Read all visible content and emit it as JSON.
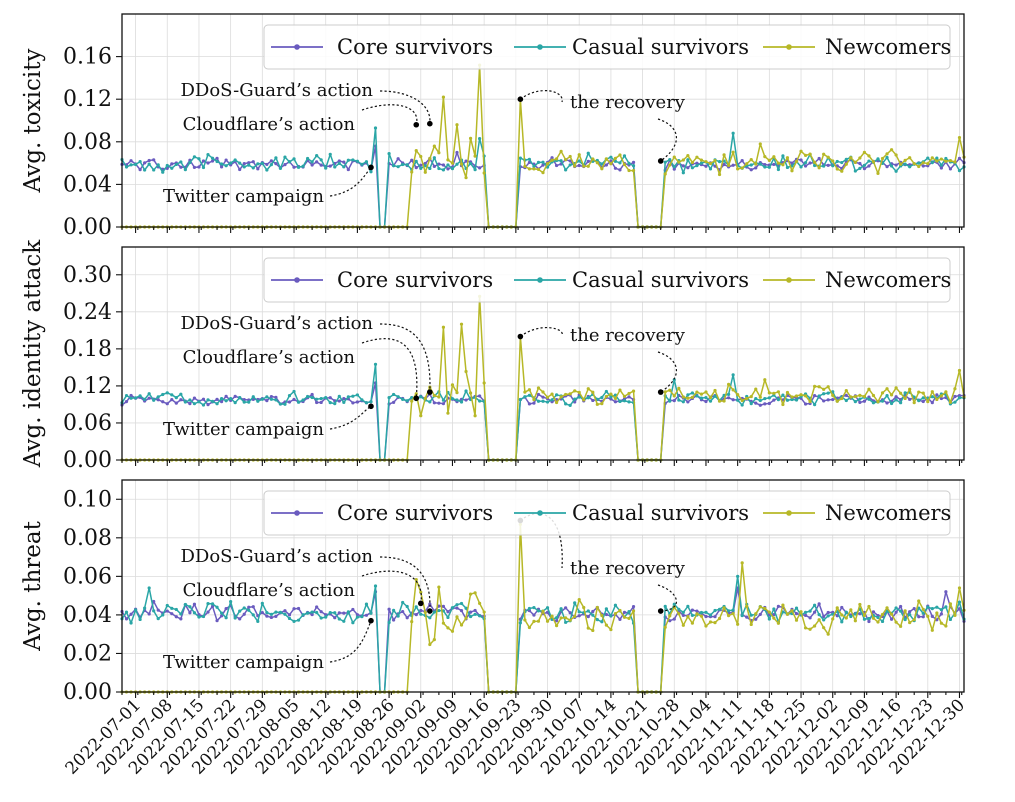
{
  "chart_data": [
    {
      "type": "line",
      "ylabel": "Avg. toxicity",
      "ylim": [
        0,
        0.2
      ],
      "yticks": [
        "0.00",
        "0.04",
        "0.08",
        "0.12",
        "0.16"
      ],
      "legend": [
        "Core survivors",
        "Casual survivors",
        "Newcomers"
      ],
      "legend_position": "top",
      "grid": true,
      "annotations": [
        {
          "text": "DDoS-Guard’s action",
          "x": "2022-09-04",
          "y": 0.097
        },
        {
          "text": "Cloudflare’s action",
          "x": "2022-09-01",
          "y": 0.096
        },
        {
          "text": "Twitter campaign",
          "x": "2022-08-22",
          "y": 0.056
        },
        {
          "text": "the recovery",
          "x": "2022-09-24",
          "y": 0.12
        },
        {
          "text": "",
          "x": "2022-10-25",
          "y": 0.062
        }
      ],
      "series": [
        {
          "name": "Core survivors",
          "color": "#6a5bbf",
          "baseline": 0.059,
          "noise": 0.004,
          "spikes": [
            {
              "x": "2022-08-23",
              "y": 0.076
            },
            {
              "x": "2022-09-10",
              "y": 0.07
            }
          ]
        },
        {
          "name": "Casual survivors",
          "color": "#2aa6a6",
          "baseline": 0.06,
          "noise": 0.006,
          "spikes": [
            {
              "x": "2022-08-23",
              "y": 0.093
            },
            {
              "x": "2022-08-24",
              "y": 0.09
            },
            {
              "x": "2022-09-15",
              "y": 0.083
            },
            {
              "x": "2022-11-10",
              "y": 0.088
            }
          ]
        },
        {
          "name": "Newcomers",
          "color": "#b7b827",
          "baseline": 0.061,
          "noise": 0.008,
          "spikes": [
            {
              "x": "2022-09-07",
              "y": 0.122
            },
            {
              "x": "2022-09-10",
              "y": 0.096
            },
            {
              "x": "2022-09-15",
              "y": 0.152
            },
            {
              "x": "2022-09-24",
              "y": 0.12
            },
            {
              "x": "2022-11-16",
              "y": 0.078
            },
            {
              "x": "2022-12-30",
              "y": 0.084
            }
          ]
        }
      ]
    },
    {
      "type": "line",
      "ylabel": "Avg. identity attack",
      "ylim": [
        0,
        0.345
      ],
      "yticks": [
        "0.00",
        "0.06",
        "0.12",
        "0.18",
        "0.24",
        "0.30"
      ],
      "legend": [
        "Core survivors",
        "Casual survivors",
        "Newcomers"
      ],
      "legend_position": "top",
      "grid": true,
      "annotations": [
        {
          "text": "DDoS-Guard’s action",
          "x": "2022-09-04",
          "y": 0.11
        },
        {
          "text": "Cloudflare’s action",
          "x": "2022-09-01",
          "y": 0.1
        },
        {
          "text": "Twitter campaign",
          "x": "2022-08-22",
          "y": 0.087
        },
        {
          "text": "the recovery",
          "x": "2022-09-24",
          "y": 0.2
        },
        {
          "text": "",
          "x": "2022-10-25",
          "y": 0.11
        }
      ],
      "series": [
        {
          "name": "Core survivors",
          "color": "#6a5bbf",
          "baseline": 0.098,
          "noise": 0.006,
          "spikes": [
            {
              "x": "2022-08-23",
              "y": 0.125
            }
          ]
        },
        {
          "name": "Casual survivors",
          "color": "#2aa6a6",
          "baseline": 0.1,
          "noise": 0.008,
          "spikes": [
            {
              "x": "2022-08-23",
              "y": 0.155
            },
            {
              "x": "2022-08-24",
              "y": 0.15
            },
            {
              "x": "2022-10-28",
              "y": 0.13
            },
            {
              "x": "2022-11-10",
              "y": 0.138
            }
          ]
        },
        {
          "name": "Newcomers",
          "color": "#b7b827",
          "baseline": 0.105,
          "noise": 0.012,
          "spikes": [
            {
              "x": "2022-09-07",
              "y": 0.215
            },
            {
              "x": "2022-09-11",
              "y": 0.22
            },
            {
              "x": "2022-09-15",
              "y": 0.265
            },
            {
              "x": "2022-09-24",
              "y": 0.2
            },
            {
              "x": "2022-11-17",
              "y": 0.13
            },
            {
              "x": "2022-12-30",
              "y": 0.145
            }
          ]
        }
      ]
    },
    {
      "type": "line",
      "ylabel": "Avg. threat",
      "ylim": [
        0,
        0.11
      ],
      "yticks": [
        "0.00",
        "0.02",
        "0.04",
        "0.06",
        "0.08",
        "0.10"
      ],
      "legend": [
        "Core survivors",
        "Casual survivors",
        "Newcomers"
      ],
      "legend_position": "top",
      "grid": true,
      "annotations": [
        {
          "text": "DDoS-Guard’s action",
          "x": "2022-09-04",
          "y": 0.042
        },
        {
          "text": "Cloudflare’s action",
          "x": "2022-09-02",
          "y": 0.046
        },
        {
          "text": "Twitter campaign",
          "x": "2022-08-22",
          "y": 0.037
        },
        {
          "text": "the recovery",
          "x": "2022-09-24",
          "y": 0.089
        },
        {
          "text": "",
          "x": "2022-10-25",
          "y": 0.042
        }
      ],
      "series": [
        {
          "name": "Core survivors",
          "color": "#6a5bbf",
          "baseline": 0.041,
          "noise": 0.003,
          "spikes": [
            {
              "x": "2022-07-05",
              "y": 0.047
            },
            {
              "x": "2022-08-23",
              "y": 0.052
            },
            {
              "x": "2022-11-11",
              "y": 0.054
            },
            {
              "x": "2022-12-27",
              "y": 0.052
            }
          ]
        },
        {
          "name": "Casual survivors",
          "color": "#2aa6a6",
          "baseline": 0.041,
          "noise": 0.004,
          "spikes": [
            {
              "x": "2022-07-04",
              "y": 0.054
            },
            {
              "x": "2022-08-23",
              "y": 0.055
            },
            {
              "x": "2022-08-24",
              "y": 0.054
            },
            {
              "x": "2022-11-11",
              "y": 0.06
            }
          ]
        },
        {
          "name": "Newcomers",
          "color": "#b7b827",
          "baseline": 0.039,
          "noise": 0.006,
          "spikes": [
            {
              "x": "2022-09-15",
              "y": 0.046
            },
            {
              "x": "2022-09-24",
              "y": 0.087
            },
            {
              "x": "2022-11-12",
              "y": 0.067
            },
            {
              "x": "2022-12-30",
              "y": 0.054
            }
          ]
        }
      ]
    }
  ],
  "x_axis": {
    "start": "2022-06-28",
    "end": "2022-12-31",
    "ticks": [
      "2022-07-01",
      "2022-07-08",
      "2022-07-15",
      "2022-07-22",
      "2022-07-29",
      "2022-08-05",
      "2022-08-12",
      "2022-08-19",
      "2022-08-26",
      "2022-09-02",
      "2022-09-09",
      "2022-09-16",
      "2022-09-23",
      "2022-09-30",
      "2022-10-07",
      "2022-10-14",
      "2022-10-21",
      "2022-10-28",
      "2022-11-04",
      "2022-11-11",
      "2022-11-18",
      "2022-11-25",
      "2022-12-02",
      "2022-12-09",
      "2022-12-16",
      "2022-12-23",
      "2022-12-30"
    ]
  },
  "data_gaps": {
    "all_zero_ranges": [
      [
        "2022-09-17",
        "2022-09-23"
      ],
      [
        "2022-10-20",
        "2022-10-25"
      ]
    ],
    "core_and_casual_zero": [
      [
        "2022-08-24",
        "2022-08-25"
      ]
    ],
    "newcomers_start": "2022-08-31"
  },
  "colors": {
    "core": "#6a5bbf",
    "casual": "#2aa6a6",
    "newcomers": "#b7b827"
  }
}
